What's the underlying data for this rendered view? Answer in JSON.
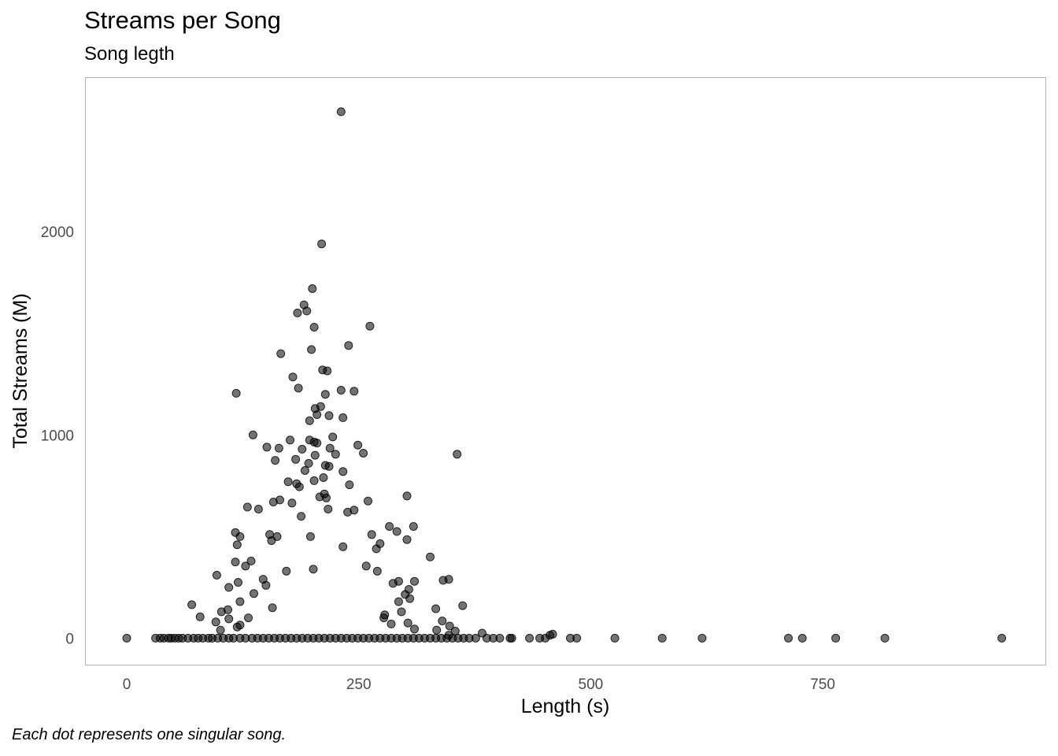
{
  "chart_data": {
    "type": "scatter",
    "title": "Streams per Song",
    "subtitle": "Song legth",
    "caption": "Each dot represents one singular song.",
    "xlabel": "Length (s)",
    "ylabel": "Total Streams (M)",
    "xlim": [
      -45,
      990
    ],
    "ylim": [
      -130,
      2760
    ],
    "x_ticks": [
      "0",
      "250",
      "500",
      "750"
    ],
    "y_ticks": [
      "0",
      "1000",
      "2000"
    ],
    "grid": false,
    "point_color": "#000000",
    "point_opacity": 0.55,
    "points": [
      [
        231,
        2590
      ],
      [
        210,
        1940
      ],
      [
        200,
        1720
      ],
      [
        191,
        1640
      ],
      [
        194,
        1610
      ],
      [
        184,
        1600
      ],
      [
        262,
        1535
      ],
      [
        202,
        1530
      ],
      [
        239,
        1440
      ],
      [
        199,
        1420
      ],
      [
        166,
        1400
      ],
      [
        211,
        1320
      ],
      [
        216,
        1315
      ],
      [
        179,
        1285
      ],
      [
        185,
        1230
      ],
      [
        231,
        1220
      ],
      [
        245,
        1215
      ],
      [
        118,
        1205
      ],
      [
        214,
        1200
      ],
      [
        209,
        1140
      ],
      [
        203,
        1130
      ],
      [
        205,
        1100
      ],
      [
        218,
        1095
      ],
      [
        233,
        1085
      ],
      [
        197,
        1070
      ],
      [
        136,
        1000
      ],
      [
        222,
        990
      ],
      [
        197,
        975
      ],
      [
        176,
        975
      ],
      [
        202,
        965
      ],
      [
        205,
        960
      ],
      [
        249,
        950
      ],
      [
        151,
        940
      ],
      [
        164,
        935
      ],
      [
        219,
        935
      ],
      [
        189,
        930
      ],
      [
        255,
        910
      ],
      [
        356,
        905
      ],
      [
        225,
        905
      ],
      [
        203,
        900
      ],
      [
        182,
        880
      ],
      [
        160,
        875
      ],
      [
        196,
        860
      ],
      [
        214,
        850
      ],
      [
        218,
        845
      ],
      [
        192,
        825
      ],
      [
        233,
        820
      ],
      [
        212,
        790
      ],
      [
        202,
        775
      ],
      [
        174,
        770
      ],
      [
        183,
        760
      ],
      [
        240,
        755
      ],
      [
        186,
        745
      ],
      [
        213,
        710
      ],
      [
        302,
        700
      ],
      [
        208,
        695
      ],
      [
        215,
        690
      ],
      [
        165,
        680
      ],
      [
        260,
        675
      ],
      [
        178,
        665
      ],
      [
        158,
        670
      ],
      [
        130,
        645
      ],
      [
        142,
        635
      ],
      [
        217,
        635
      ],
      [
        245,
        630
      ],
      [
        238,
        620
      ],
      [
        188,
        600
      ],
      [
        283,
        550
      ],
      [
        309,
        550
      ],
      [
        291,
        525
      ],
      [
        117,
        520
      ],
      [
        154,
        510
      ],
      [
        162,
        500
      ],
      [
        198,
        500
      ],
      [
        264,
        510
      ],
      [
        122,
        500
      ],
      [
        156,
        480
      ],
      [
        273,
        465
      ],
      [
        302,
        485
      ],
      [
        119,
        460
      ],
      [
        269,
        440
      ],
      [
        233,
        450
      ],
      [
        327,
        400
      ],
      [
        134,
        380
      ],
      [
        117,
        375
      ],
      [
        128,
        355
      ],
      [
        258,
        355
      ],
      [
        201,
        340
      ],
      [
        172,
        330
      ],
      [
        97,
        310
      ],
      [
        270,
        330
      ],
      [
        347,
        290
      ],
      [
        341,
        285
      ],
      [
        310,
        280
      ],
      [
        293,
        280
      ],
      [
        120,
        275
      ],
      [
        287,
        270
      ],
      [
        147,
        290
      ],
      [
        150,
        260
      ],
      [
        110,
        250
      ],
      [
        304,
        240
      ],
      [
        300,
        215
      ],
      [
        137,
        220
      ],
      [
        122,
        180
      ],
      [
        305,
        195
      ],
      [
        293,
        180
      ],
      [
        70,
        165
      ],
      [
        362,
        160
      ],
      [
        333,
        145
      ],
      [
        109,
        140
      ],
      [
        102,
        130
      ],
      [
        157,
        150
      ],
      [
        296,
        130
      ],
      [
        278,
        115
      ],
      [
        79,
        105
      ],
      [
        110,
        95
      ],
      [
        131,
        100
      ],
      [
        277,
        100
      ],
      [
        340,
        85
      ],
      [
        96,
        80
      ],
      [
        303,
        75
      ],
      [
        285,
        70
      ],
      [
        122,
        65
      ],
      [
        348,
        60
      ],
      [
        119,
        55
      ],
      [
        310,
        45
      ],
      [
        101,
        40
      ],
      [
        334,
        40
      ],
      [
        354,
        35
      ],
      [
        383,
        25
      ],
      [
        459,
        20
      ],
      [
        456,
        15
      ],
      [
        347,
        15
      ],
      [
        0,
        0
      ],
      [
        31,
        0
      ],
      [
        36,
        0
      ],
      [
        40,
        0
      ],
      [
        45,
        0
      ],
      [
        48,
        0
      ],
      [
        52,
        0
      ],
      [
        56,
        0
      ],
      [
        60,
        0
      ],
      [
        66,
        0
      ],
      [
        72,
        0
      ],
      [
        77,
        0
      ],
      [
        82,
        0
      ],
      [
        88,
        0
      ],
      [
        92,
        0
      ],
      [
        98,
        0
      ],
      [
        104,
        0
      ],
      [
        110,
        0
      ],
      [
        115,
        0
      ],
      [
        122,
        0
      ],
      [
        128,
        0
      ],
      [
        135,
        0
      ],
      [
        141,
        0
      ],
      [
        147,
        0
      ],
      [
        153,
        0
      ],
      [
        159,
        0
      ],
      [
        165,
        0
      ],
      [
        171,
        0
      ],
      [
        177,
        0
      ],
      [
        183,
        0
      ],
      [
        189,
        0
      ],
      [
        195,
        0
      ],
      [
        201,
        0
      ],
      [
        207,
        0
      ],
      [
        213,
        0
      ],
      [
        219,
        0
      ],
      [
        225,
        0
      ],
      [
        231,
        0
      ],
      [
        237,
        0
      ],
      [
        243,
        0
      ],
      [
        249,
        0
      ],
      [
        255,
        0
      ],
      [
        261,
        0
      ],
      [
        267,
        0
      ],
      [
        273,
        0
      ],
      [
        279,
        0
      ],
      [
        285,
        0
      ],
      [
        291,
        0
      ],
      [
        297,
        0
      ],
      [
        303,
        0
      ],
      [
        309,
        0
      ],
      [
        315,
        0
      ],
      [
        321,
        0
      ],
      [
        327,
        0
      ],
      [
        333,
        0
      ],
      [
        339,
        0
      ],
      [
        345,
        0
      ],
      [
        351,
        0
      ],
      [
        357,
        0
      ],
      [
        363,
        0
      ],
      [
        369,
        0
      ],
      [
        376,
        0
      ],
      [
        388,
        0
      ],
      [
        395,
        0
      ],
      [
        402,
        0
      ],
      [
        413,
        0
      ],
      [
        415,
        0
      ],
      [
        434,
        0
      ],
      [
        445,
        0
      ],
      [
        451,
        0
      ],
      [
        478,
        0
      ],
      [
        485,
        0
      ],
      [
        526,
        0
      ],
      [
        577,
        0
      ],
      [
        620,
        0
      ],
      [
        713,
        0
      ],
      [
        728,
        0
      ],
      [
        764,
        0
      ],
      [
        817,
        0
      ],
      [
        943,
        0
      ]
    ]
  }
}
